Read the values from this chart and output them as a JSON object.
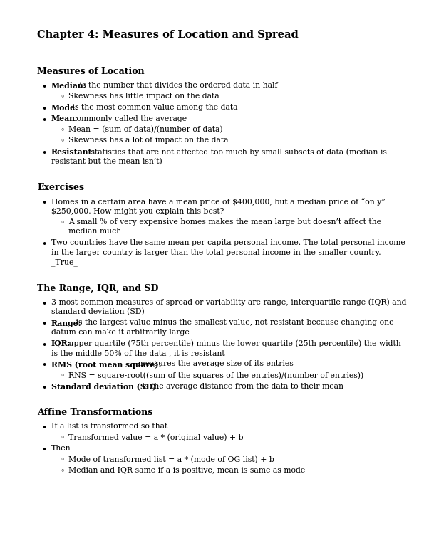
{
  "bg_color": "#ffffff",
  "title": "Chapter 4: Measures of Location and Spread",
  "sections": [
    {
      "heading": "Measures of Location",
      "items": [
        {
          "level": 1,
          "lines": [
            "Median: is the number that divides the ordered data in half"
          ],
          "bold_prefix": "Median:"
        },
        {
          "level": 2,
          "lines": [
            "Skewness has little impact on the data"
          ],
          "bold_prefix": ""
        },
        {
          "level": 1,
          "lines": [
            "Mode: is the most common value among the data"
          ],
          "bold_prefix": "Mode:"
        },
        {
          "level": 1,
          "lines": [
            "Mean: commonly called the average"
          ],
          "bold_prefix": "Mean:"
        },
        {
          "level": 2,
          "lines": [
            "Mean = (sum of data)/(number of data)"
          ],
          "bold_prefix": ""
        },
        {
          "level": 2,
          "lines": [
            "Skewness has a lot of impact on the data"
          ],
          "bold_prefix": ""
        },
        {
          "level": 1,
          "lines": [
            "Resistant: statistics that are not affected too much by small subsets of data (median is",
            "resistant but the mean isn’t)"
          ],
          "bold_prefix": "Resistant:"
        }
      ]
    },
    {
      "heading": "Exercises",
      "items": [
        {
          "level": 1,
          "lines": [
            "Homes in a certain area have a mean price of $400,000, but a median price of “only”",
            "$250,000. How might you explain this best?"
          ],
          "bold_prefix": ""
        },
        {
          "level": 2,
          "lines": [
            "A small % of very expensive homes makes the mean large but doesn’t affect the",
            "median much"
          ],
          "bold_prefix": ""
        },
        {
          "level": 1,
          "lines": [
            "Two countries have the same mean per capita personal income. The total personal income",
            "in the larger country is larger than the total personal income in the smaller country.",
            "_True_"
          ],
          "bold_prefix": ""
        }
      ]
    },
    {
      "heading": "The Range, IQR, and SD",
      "items": [
        {
          "level": 1,
          "lines": [
            "3 most common measures of spread or variability are range, interquartile range (IQR) and",
            "standard deviation (SD)"
          ],
          "bold_prefix": ""
        },
        {
          "level": 1,
          "lines": [
            "Range: is the largest value minus the smallest value, not resistant because changing one",
            "datum can make it arbitrarily large"
          ],
          "bold_prefix": "Range:"
        },
        {
          "level": 1,
          "lines": [
            "IQR: upper quartile (75th percentile) minus the lower quartile (25th percentile) the width",
            "is the middle 50% of the data , it is resistant"
          ],
          "bold_prefix": "IQR:"
        },
        {
          "level": 1,
          "lines": [
            "RMS (root mean square): measures the average size of its entries"
          ],
          "bold_prefix": "RMS (root mean square):"
        },
        {
          "level": 2,
          "lines": [
            "RNS = square-root((sum of the squares of the entries)/(number of entries))"
          ],
          "bold_prefix": ""
        },
        {
          "level": 1,
          "lines": [
            "Standard deviation (SD): is the average distance from the data to their mean"
          ],
          "bold_prefix": "Standard deviation (SD):"
        }
      ]
    },
    {
      "heading": "Affine Transformations",
      "items": [
        {
          "level": 1,
          "lines": [
            "If a list is transformed so that"
          ],
          "bold_prefix": ""
        },
        {
          "level": 2,
          "lines": [
            "Transformed value = a * (original value) + b"
          ],
          "bold_prefix": ""
        },
        {
          "level": 1,
          "lines": [
            "Then"
          ],
          "bold_prefix": ""
        },
        {
          "level": 2,
          "lines": [
            "Mode of transformed list = a * (mode of OG list) + b"
          ],
          "bold_prefix": ""
        },
        {
          "level": 2,
          "lines": [
            "Median and IQR same if a is positive, mean is same as mode"
          ],
          "bold_prefix": ""
        }
      ]
    }
  ]
}
